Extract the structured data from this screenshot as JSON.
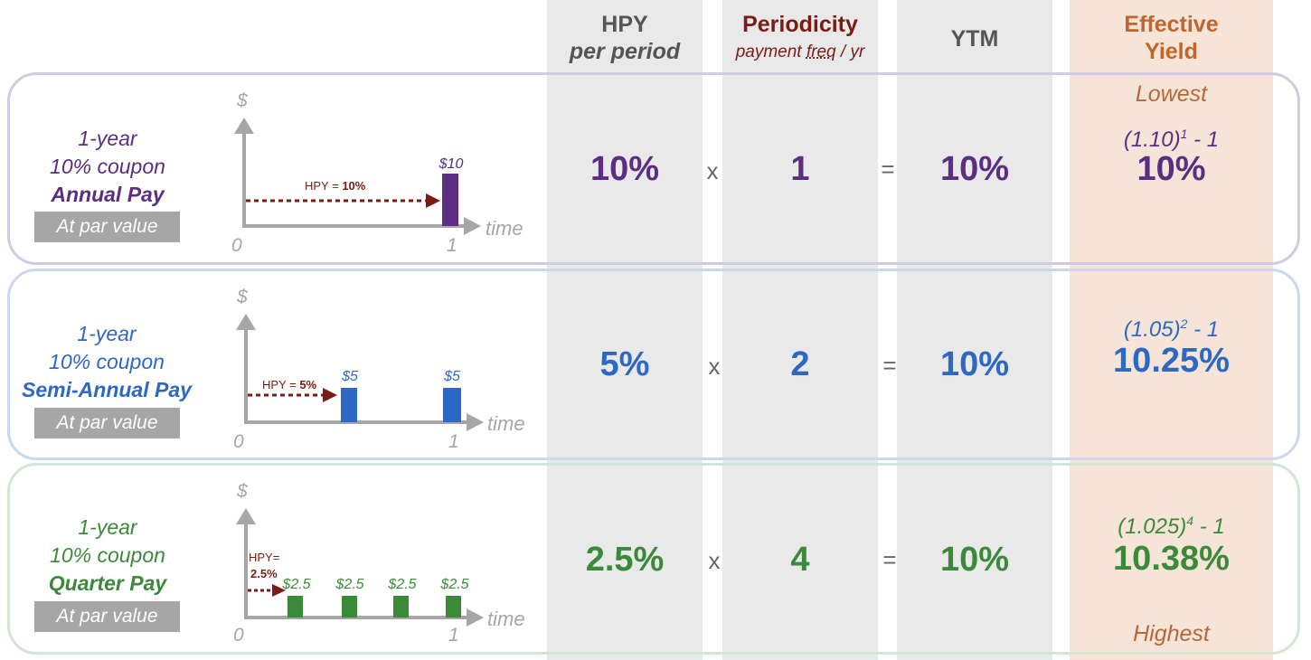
{
  "colors": {
    "annual": "#5b2d83",
    "semi": "#2d68c4",
    "quarter": "#3a8a3a",
    "periodicity_header": "#7a1c15",
    "effective_header": "#c0662a",
    "hpy_arrow": "#7a1c15",
    "column_gray": "#e9e9ea",
    "column_peach": "#f7e4d8"
  },
  "headers": {
    "hpy": "HPY",
    "hpy_sub": "per period",
    "periodicity": "Periodicity",
    "periodicity_sub_1": "payment ",
    "periodicity_sub_2": "freq",
    "periodicity_sub_3": " / yr",
    "ytm": "YTM",
    "effective_1": "Effective",
    "effective_2": "Yield"
  },
  "operators": {
    "times": "x",
    "equals": "="
  },
  "notes": {
    "lowest": "Lowest",
    "highest": "Highest"
  },
  "axis_labels": {
    "dollar": "$",
    "time": "time",
    "zero": "0",
    "one": "1"
  },
  "rows": [
    {
      "line1": "1-year",
      "line2": "10% coupon",
      "pay": "Annual Pay",
      "par": "At par value",
      "hpy_label": "HPY = ",
      "hpy_value": "10%",
      "payments": [
        "$10"
      ],
      "hpy": "10%",
      "periodicity": "1",
      "ytm": "10%",
      "formula_base": "(1.10)",
      "formula_exp": "1",
      "formula_tail": " - 1",
      "effective": "10%"
    },
    {
      "line1": "1-year",
      "line2": "10% coupon",
      "pay": "Semi-Annual Pay",
      "par": "At par value",
      "hpy_label": "HPY = ",
      "hpy_value": "5%",
      "payments": [
        "$5",
        "$5"
      ],
      "hpy": "5%",
      "periodicity": "2",
      "ytm": "10%",
      "formula_base": "(1.05)",
      "formula_exp": "2",
      "formula_tail": " - 1",
      "effective": "10.25%"
    },
    {
      "line1": "1-year",
      "line2": "10% coupon",
      "pay": "Quarter Pay",
      "par": "At par value",
      "hpy_label": "HPY=",
      "hpy_value": "2.5%",
      "payments": [
        "$2.5",
        "$2.5",
        "$2.5",
        "$2.5"
      ],
      "hpy": "2.5%",
      "periodicity": "4",
      "ytm": "10%",
      "formula_base": "(1.025)",
      "formula_exp": "4",
      "formula_tail": " - 1",
      "effective": "10.38%"
    }
  ]
}
